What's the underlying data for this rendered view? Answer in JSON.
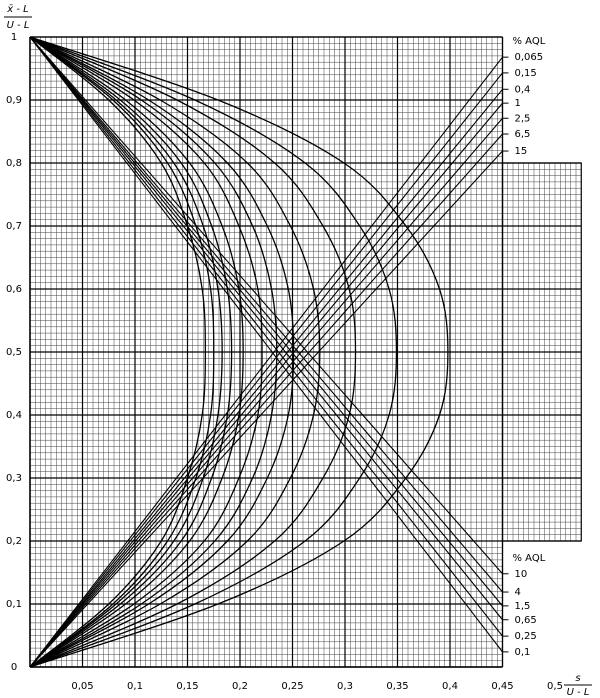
{
  "chart_data": {
    "type": "acceptance-chart",
    "y_label": {
      "numerator": "x̄ - L",
      "denominator": "U - L"
    },
    "x_label": {
      "numerator": "s",
      "denominator": "U - L"
    },
    "xlim": [
      0,
      0.525
    ],
    "ylim": [
      0,
      1
    ],
    "main_grid_xlim": [
      0,
      0.45
    ],
    "extension": {
      "xlim": [
        0.45,
        0.525
      ],
      "ylim": [
        0.2,
        0.8
      ]
    },
    "minor_grid": {
      "x": 0.005,
      "y": 0.01
    },
    "xticks": [
      {
        "value": 0.05,
        "label": "0,05"
      },
      {
        "value": 0.1,
        "label": "0,1"
      },
      {
        "value": 0.15,
        "label": "0,15"
      },
      {
        "value": 0.2,
        "label": "0,2"
      },
      {
        "value": 0.25,
        "label": "0,25"
      },
      {
        "value": 0.3,
        "label": "0,3"
      },
      {
        "value": 0.35,
        "label": "0,35"
      },
      {
        "value": 0.4,
        "label": "0,4"
      },
      {
        "value": 0.45,
        "label": "0,45"
      },
      {
        "value": 0.5,
        "label": "0,5"
      }
    ],
    "yticks": [
      0,
      {
        "value": 0.1,
        "label": "0,1"
      },
      {
        "value": 0.2,
        "label": "0,2"
      },
      {
        "value": 0.3,
        "label": "0,3"
      },
      {
        "value": 0.4,
        "label": "0,4"
      },
      {
        "value": 0.5,
        "label": "0,5"
      },
      {
        "value": 0.6,
        "label": "0,6"
      },
      {
        "value": 0.7,
        "label": "0,7"
      },
      {
        "value": 0.8,
        "label": "0,8"
      },
      {
        "value": 0.9,
        "label": "0,9"
      },
      1
    ],
    "curve_y": [
      0,
      0.1,
      0.2,
      0.3,
      0.4,
      0.5,
      0.6,
      0.7,
      0.8,
      0.9,
      1
    ],
    "curves": [
      {
        "values": [
          0,
          0.075,
          0.125,
          0.15,
          0.164,
          0.167,
          0.164,
          0.15,
          0.125,
          0.075,
          0
        ]
      },
      {
        "values": [
          0,
          0.079,
          0.131,
          0.158,
          0.172,
          0.175,
          0.172,
          0.158,
          0.131,
          0.079,
          0
        ]
      },
      {
        "values": [
          0,
          0.082,
          0.137,
          0.165,
          0.179,
          0.183,
          0.179,
          0.165,
          0.137,
          0.082,
          0
        ]
      },
      {
        "values": [
          0,
          0.086,
          0.144,
          0.173,
          0.188,
          0.192,
          0.188,
          0.173,
          0.144,
          0.086,
          0
        ]
      },
      {
        "values": [
          0,
          0.091,
          0.152,
          0.183,
          0.199,
          0.203,
          0.199,
          0.183,
          0.152,
          0.091,
          0
        ]
      },
      {
        "values": [
          0,
          0.099,
          0.166,
          0.199,
          0.217,
          0.221,
          0.217,
          0.199,
          0.166,
          0.099,
          0
        ]
      },
      {
        "values": [
          0,
          0.106,
          0.176,
          0.212,
          0.23,
          0.235,
          0.23,
          0.212,
          0.176,
          0.106,
          0
        ]
      },
      {
        "values": [
          0,
          0.113,
          0.188,
          0.226,
          0.246,
          0.251,
          0.246,
          0.226,
          0.188,
          0.113,
          0
        ]
      },
      {
        "values": [
          0,
          0.124,
          0.207,
          0.248,
          0.27,
          0.276,
          0.27,
          0.248,
          0.207,
          0.124,
          0
        ]
      },
      {
        "values": [
          0,
          0.14,
          0.233,
          0.279,
          0.304,
          0.31,
          0.304,
          0.279,
          0.233,
          0.14,
          0
        ]
      },
      {
        "values": [
          0,
          0.157,
          0.262,
          0.314,
          0.342,
          0.349,
          0.342,
          0.314,
          0.262,
          0.157,
          0
        ]
      },
      {
        "values": [
          0,
          0.179,
          0.299,
          0.358,
          0.39,
          0.398,
          0.39,
          0.358,
          0.299,
          0.179,
          0
        ]
      }
    ],
    "upper_lines": {
      "title": "% AQL",
      "labels": [
        "0,065",
        "0,15",
        "0,4",
        "1",
        "2,5",
        "6,5",
        "15"
      ],
      "values": [
        0.968,
        0.943,
        0.917,
        0.895,
        0.871,
        0.846,
        0.819
      ]
    },
    "lower_lines": {
      "title": "% AQL",
      "labels": [
        "10",
        "4",
        "1,5",
        "0,65",
        "0,25",
        "0,1"
      ],
      "values": [
        0.148,
        0.119,
        0.097,
        0.075,
        0.049,
        0.024
      ]
    }
  }
}
